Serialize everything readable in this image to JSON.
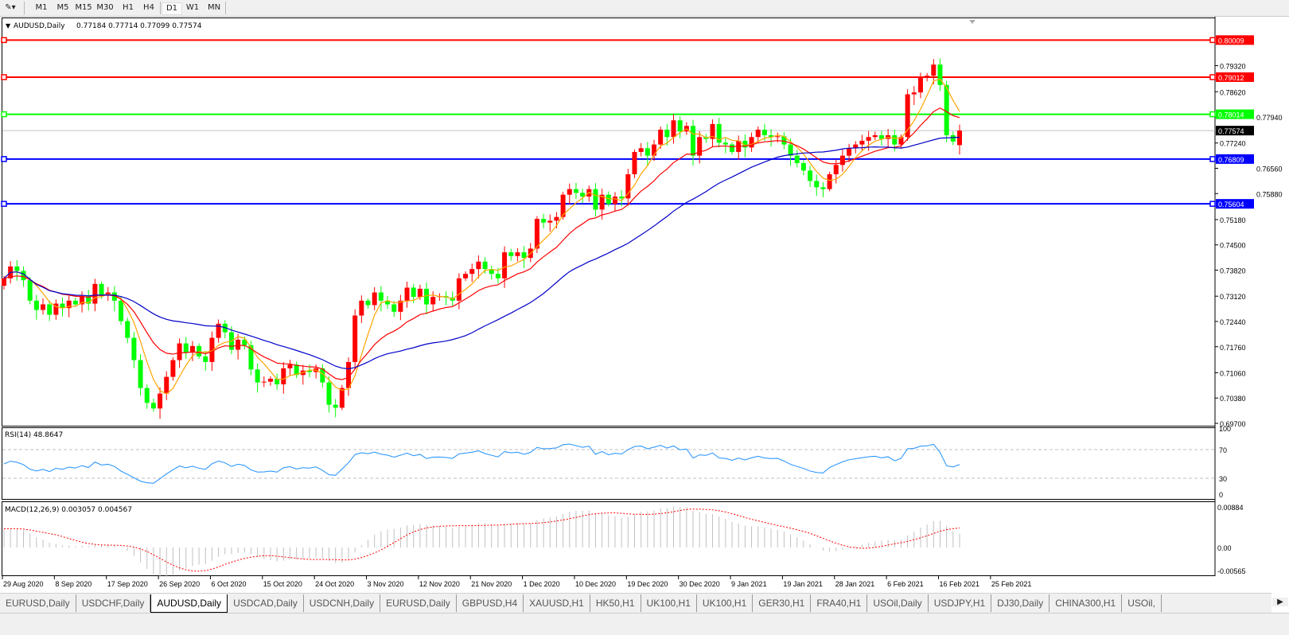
{
  "toolbar": {
    "tool_icon": "line-tool-icon",
    "timeframes": [
      "M1",
      "M5",
      "M15",
      "M30",
      "H1",
      "H4",
      "D1",
      "W1",
      "MN"
    ],
    "active_timeframe": "D1"
  },
  "chart": {
    "header": "AUDUSD,Daily",
    "ohlc": "0.77184 0.77714 0.77099 0.77574",
    "bull_color": "#ff0000",
    "bear_color": "#00ff00",
    "current_price": "0.77574",
    "price_ticks": [
      "0.79320",
      "0.78620",
      "0.77940",
      "0.77240",
      "0.76560",
      "0.75880",
      "0.75180",
      "0.74500",
      "0.73820",
      "0.73120",
      "0.72440",
      "0.71760",
      "0.71060",
      "0.70380",
      "0.69700"
    ],
    "levels": [
      {
        "label": "0.80009",
        "color": "#ff0000"
      },
      {
        "label": "0.79012",
        "color": "#ff0000"
      },
      {
        "label": "0.78014",
        "color": "#00ff00"
      },
      {
        "label": "0.76809",
        "color": "#0000ff"
      },
      {
        "label": "0.75604",
        "color": "#0000ff"
      }
    ],
    "ma_colors": [
      "#ffa500",
      "#ff0000",
      "#0000c8"
    ],
    "date_labels": [
      "29 Aug 2020",
      "8 Sep 2020",
      "17 Sep 2020",
      "26 Sep 2020",
      "6 Oct 2020",
      "15 Oct 2020",
      "24 Oct 2020",
      "3 Nov 2020",
      "12 Nov 2020",
      "21 Nov 2020",
      "1 Dec 2020",
      "10 Dec 2020",
      "19 Dec 2020",
      "30 Dec 2020",
      "9 Jan 2021",
      "19 Jan 2021",
      "28 Jan 2021",
      "6 Feb 2021",
      "16 Feb 2021",
      "25 Feb 2021"
    ]
  },
  "chart_data": {
    "type": "candlestick",
    "symbol": "AUDUSD",
    "timeframe": "Daily",
    "ylim": [
      0.697,
      0.80009
    ],
    "first_open": 0.734,
    "last_open": 0.77184,
    "closes": [
      0.736,
      0.7392,
      0.738,
      0.7355,
      0.73,
      0.7275,
      0.729,
      0.7262,
      0.7292,
      0.728,
      0.73,
      0.729,
      0.7312,
      0.7292,
      0.7345,
      0.7315,
      0.7322,
      0.73,
      0.7245,
      0.72,
      0.714,
      0.7065,
      0.7025,
      0.701,
      0.705,
      0.7095,
      0.714,
      0.7185,
      0.716,
      0.7178,
      0.715,
      0.7135,
      0.72,
      0.7238,
      0.7215,
      0.7168,
      0.7195,
      0.718,
      0.7115,
      0.708,
      0.7082,
      0.709,
      0.7075,
      0.7118,
      0.7128,
      0.71,
      0.7112,
      0.7108,
      0.7118,
      0.708,
      0.702,
      0.7012,
      0.7065,
      0.7135,
      0.726,
      0.73,
      0.7288,
      0.7322,
      0.73,
      0.729,
      0.727,
      0.73,
      0.7335,
      0.731,
      0.7332,
      0.729,
      0.731,
      0.7312,
      0.7308,
      0.73,
      0.736,
      0.7372,
      0.7385,
      0.7405,
      0.7385,
      0.7372,
      0.736,
      0.743,
      0.742,
      0.743,
      0.7415,
      0.744,
      0.752,
      0.751,
      0.7515,
      0.7525,
      0.7585,
      0.76,
      0.759,
      0.758,
      0.76,
      0.7545,
      0.7585,
      0.756,
      0.758,
      0.7575,
      0.764,
      0.77,
      0.771,
      0.769,
      0.772,
      0.776,
      0.774,
      0.7785,
      0.7755,
      0.777,
      0.769,
      0.774,
      0.7735,
      0.7775,
      0.7725,
      0.772,
      0.77,
      0.773,
      0.7712,
      0.774,
      0.776,
      0.7745,
      0.774,
      0.7742,
      0.772,
      0.769,
      0.767,
      0.765,
      0.7622,
      0.7605,
      0.76,
      0.764,
      0.7665,
      0.769,
      0.771,
      0.772,
      0.773,
      0.774,
      0.7745,
      0.7735,
      0.7745,
      0.772,
      0.774,
      0.7855,
      0.786,
      0.79,
      0.7905,
      0.7935,
      0.788,
      0.7745,
      0.7728,
      0.77574
    ],
    "rsi": {
      "label": "RSI(14) 48.8647",
      "levels": [
        70,
        30
      ],
      "ticks": [
        "100",
        "70",
        "30",
        "0"
      ],
      "color": "#1e90ff"
    },
    "macd": {
      "label": "MACD(12,26,9) 0.003057 0.004567",
      "ticks": [
        "0.00884",
        "0.00",
        "-0.00565"
      ],
      "ylim": [
        -0.00565,
        0.00884
      ],
      "signal_color": "#ff0000",
      "hist_color": "#c0c0c0"
    }
  },
  "tabs": {
    "items": [
      "EURUSD,Daily",
      "USDCHF,Daily",
      "AUDUSD,Daily",
      "USDCAD,Daily",
      "USDCNH,Daily",
      "EURUSD,Daily",
      "GBPUSD,H4",
      "XAUUSD,H1",
      "HK50,H1",
      "UK100,H1",
      "UK100,H1",
      "GER30,H1",
      "FRA40,H1",
      "USOil,Daily",
      "USDJPY,H1",
      "DJ30,Daily",
      "CHINA300,H1",
      "USOil,"
    ],
    "active": 2,
    "scroll_icon": "arrow-right-icon"
  }
}
